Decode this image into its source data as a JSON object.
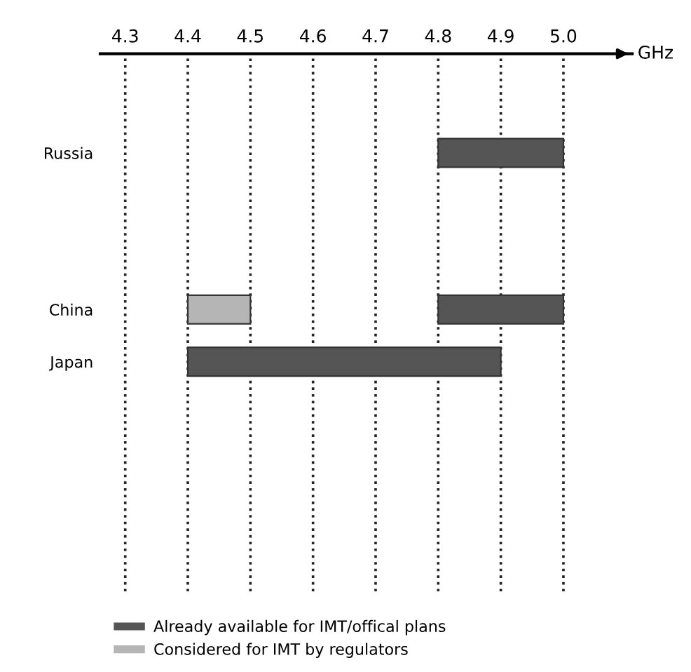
{
  "chart_data": {
    "type": "bar",
    "orientation": "horizontal",
    "xlabel": "GHz",
    "categories": [
      "Russia",
      null,
      null,
      "China",
      "Japan"
    ],
    "series": [
      {
        "name": "Already available for IMT/offical plans",
        "color": "#555555",
        "values": [
          0.2,
          null,
          null,
          0.2,
          0.5
        ],
        "base": [
          4.8,
          null,
          null,
          4.8,
          4.4
        ]
      },
      {
        "name": "Considered for IMT by regulators",
        "color": "#b5b5b5",
        "values": [
          null,
          null,
          null,
          0.1,
          null
        ],
        "base": [
          null,
          null,
          null,
          4.4,
          null
        ]
      }
    ],
    "xlim": [
      4.26,
      5.11
    ],
    "xticks": [
      4.3,
      4.4,
      4.5,
      4.6,
      4.7,
      4.8,
      4.9,
      {
        "value": 5.0,
        "label": "5.0"
      }
    ],
    "grid": "x",
    "legend": "bottom left"
  }
}
